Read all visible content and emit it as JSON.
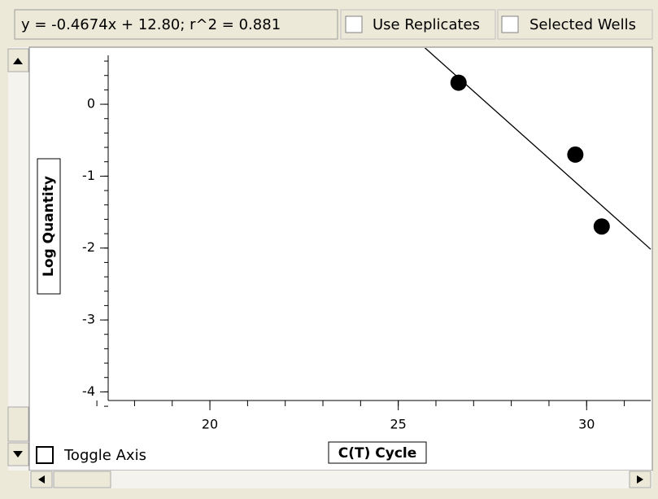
{
  "toolbar": {
    "equation": "y = -0.4674x + 12.80;  r^2 = 0.881",
    "use_replicates": "Use Replicates",
    "selected_wells": "Selected Wells"
  },
  "toggle_axis": "Toggle Axis",
  "chart_data": {
    "type": "scatter",
    "x_label": "C(T) Cycle",
    "y_label": "Log Quantity",
    "series": [
      {
        "color": "#000000",
        "x": [
          26.6,
          29.7,
          30.4
        ],
        "values": [
          0.3,
          -0.7,
          -1.7
        ]
      }
    ],
    "trendline": {
      "slope": -0.4674,
      "intercept": 12.8,
      "color": "#000000"
    },
    "xlim": [
      17.3,
      31.7
    ],
    "ylim": [
      -4.12,
      0.68
    ],
    "xticks": [
      20,
      25,
      30
    ],
    "yticks": [
      0,
      -1,
      -2,
      -3,
      -4
    ]
  }
}
